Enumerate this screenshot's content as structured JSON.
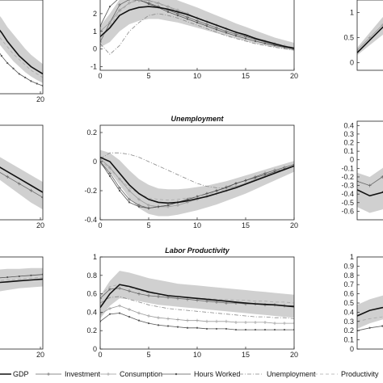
{
  "chart_data": [
    {
      "type": "line",
      "title": "",
      "x": [
        0,
        2,
        4,
        6,
        8,
        10,
        12,
        14,
        16,
        18,
        20
      ],
      "ylim": [
        -0.2,
        2.4
      ],
      "xticks": [
        "20"
      ],
      "yticks": [],
      "series": [
        {
          "name": "GDP",
          "values": [
            2.2,
            2.0,
            1.7,
            1.5,
            1.25,
            1.05,
            0.85,
            0.7,
            0.55,
            0.45,
            0.35
          ]
        },
        {
          "name": "Productivity",
          "values": [
            2.0,
            1.8,
            1.5,
            1.3,
            1.1,
            0.9,
            0.75,
            0.6,
            0.45,
            0.35,
            0.25
          ]
        },
        {
          "name": "Hours Worked",
          "values": [
            1.7,
            1.4,
            1.1,
            0.85,
            0.65,
            0.5,
            0.35,
            0.25,
            0.15,
            0.08,
            0.02
          ]
        }
      ],
      "band": {
        "lower": [
          1.8,
          1.55,
          1.3,
          1.1,
          0.9,
          0.7,
          0.55,
          0.4,
          0.28,
          0.18,
          0.1
        ],
        "upper": [
          2.6,
          2.45,
          2.1,
          1.9,
          1.65,
          1.45,
          1.25,
          1.05,
          0.88,
          0.75,
          0.62
        ]
      }
    },
    {
      "type": "line",
      "title": "",
      "x": [
        0,
        1,
        2,
        3,
        4,
        5,
        6,
        7,
        8,
        9,
        10,
        11,
        12,
        13,
        14,
        15,
        16,
        17,
        18,
        19,
        20
      ],
      "ylim": [
        -1.2,
        3.0
      ],
      "xticks": [
        "0",
        "5",
        "10",
        "15",
        "20"
      ],
      "yticks": [
        "-1",
        "0",
        "1",
        "2"
      ],
      "series": [
        {
          "name": "GDP",
          "values": [
            0.7,
            1.2,
            1.9,
            2.2,
            2.35,
            2.4,
            2.35,
            2.25,
            2.1,
            1.95,
            1.75,
            1.55,
            1.35,
            1.15,
            0.95,
            0.8,
            0.6,
            0.45,
            0.3,
            0.15,
            0.05
          ]
        },
        {
          "name": "Investment",
          "values": [
            0.4,
            1.5,
            2.5,
            2.8,
            2.75,
            2.6,
            2.4,
            2.2,
            2.0,
            1.8,
            1.6,
            1.4,
            1.2,
            1.0,
            0.85,
            0.7,
            0.55,
            0.4,
            0.25,
            0.12,
            0.0
          ]
        },
        {
          "name": "Consumption",
          "values": [
            1.0,
            1.5,
            2.2,
            2.6,
            2.8,
            2.75,
            2.6,
            2.4,
            2.2,
            2.0,
            1.75,
            1.55,
            1.35,
            1.15,
            0.95,
            0.75,
            0.6,
            0.45,
            0.3,
            0.18,
            0.05
          ]
        },
        {
          "name": "Unemployment",
          "values": [
            0.3,
            -0.3,
            0.2,
            1.0,
            1.5,
            1.9,
            2.0,
            1.9,
            1.75,
            1.55,
            1.35,
            1.15,
            0.95,
            0.75,
            0.6,
            0.45,
            0.3,
            0.2,
            0.1,
            0.02,
            -0.05
          ]
        },
        {
          "name": "Hours Worked",
          "values": [
            1.3,
            2.4,
            2.9,
            2.9,
            2.8,
            2.55,
            2.35,
            2.1,
            1.9,
            1.7,
            1.5,
            1.3,
            1.1,
            0.92,
            0.75,
            0.6,
            0.45,
            0.32,
            0.2,
            0.1,
            0.0
          ]
        },
        {
          "name": "Productivity",
          "values": [
            0.5,
            1.3,
            2.1,
            2.6,
            2.75,
            2.7,
            2.55,
            2.35,
            2.15,
            1.95,
            1.75,
            1.55,
            1.35,
            1.15,
            0.97,
            0.8,
            0.63,
            0.47,
            0.33,
            0.2,
            0.08
          ]
        }
      ],
      "band": {
        "lower": [
          0.1,
          0.4,
          1.0,
          1.4,
          1.6,
          1.7,
          1.7,
          1.6,
          1.5,
          1.35,
          1.2,
          1.05,
          0.9,
          0.75,
          0.6,
          0.45,
          0.32,
          0.2,
          0.1,
          0.0,
          -0.1
        ],
        "upper": [
          1.3,
          2.0,
          2.8,
          3.0,
          3.0,
          3.0,
          3.0,
          2.95,
          2.75,
          2.55,
          2.35,
          2.12,
          1.9,
          1.68,
          1.45,
          1.25,
          1.05,
          0.85,
          0.65,
          0.5,
          0.35
        ]
      }
    },
    {
      "type": "line",
      "title": "",
      "x": [
        0,
        1,
        2,
        3,
        4,
        5
      ],
      "ylim": [
        -0.15,
        1.25
      ],
      "xticks": [],
      "yticks": [
        "0",
        "0.5",
        "1"
      ],
      "series": [
        {
          "name": "GDP",
          "values": [
            0.2,
            0.45,
            0.7,
            0.88,
            1.0,
            1.1
          ]
        },
        {
          "name": "Consumption",
          "values": [
            0.25,
            0.5,
            0.75,
            0.95,
            1.1,
            1.2
          ]
        }
      ],
      "band": {
        "lower": [
          0.15,
          0.35,
          0.55,
          0.7,
          0.82,
          0.9
        ],
        "upper": [
          0.3,
          0.6,
          0.9,
          1.1,
          1.2,
          1.25
        ]
      }
    },
    {
      "type": "line",
      "title": "",
      "x": [
        0,
        4,
        8,
        12,
        16,
        20
      ],
      "ylim": [
        -0.4,
        0.15
      ],
      "xticks": [
        "20"
      ],
      "yticks": [],
      "series": [
        {
          "name": "GDP",
          "values": [
            -0.04,
            -0.08,
            -0.12,
            -0.16,
            -0.2,
            -0.24
          ]
        },
        {
          "name": "Investment",
          "values": [
            -0.07,
            -0.11,
            -0.15,
            -0.19,
            -0.23,
            -0.27
          ]
        }
      ],
      "band": {
        "lower": [
          -0.1,
          -0.15,
          -0.2,
          -0.25,
          -0.3,
          -0.34
        ],
        "upper": [
          0.02,
          -0.02,
          -0.06,
          -0.1,
          -0.14,
          -0.18
        ]
      }
    },
    {
      "type": "line",
      "title": "Unemployment",
      "x": [
        0,
        1,
        2,
        3,
        4,
        5,
        6,
        7,
        8,
        9,
        10,
        11,
        12,
        13,
        14,
        15,
        16,
        17,
        18,
        19,
        20
      ],
      "ylim": [
        -0.4,
        0.25
      ],
      "xticks": [
        "0",
        "5",
        "10",
        "15",
        "20"
      ],
      "yticks": [
        "-0.4",
        "-0.2",
        "0",
        "0.2"
      ],
      "series": [
        {
          "name": "GDP",
          "values": [
            0.03,
            0.0,
            -0.08,
            -0.16,
            -0.22,
            -0.26,
            -0.28,
            -0.285,
            -0.28,
            -0.27,
            -0.255,
            -0.24,
            -0.22,
            -0.2,
            -0.18,
            -0.155,
            -0.13,
            -0.105,
            -0.08,
            -0.055,
            -0.03
          ]
        },
        {
          "name": "Investment",
          "values": [
            0.0,
            -0.08,
            -0.18,
            -0.26,
            -0.3,
            -0.32,
            -0.31,
            -0.3,
            -0.28,
            -0.26,
            -0.24,
            -0.22,
            -0.2,
            -0.175,
            -0.15,
            -0.13,
            -0.105,
            -0.08,
            -0.06,
            -0.04,
            -0.02
          ]
        },
        {
          "name": "Consumption",
          "values": [
            0.02,
            -0.04,
            -0.12,
            -0.2,
            -0.26,
            -0.3,
            -0.31,
            -0.31,
            -0.3,
            -0.28,
            -0.26,
            -0.24,
            -0.22,
            -0.2,
            -0.17,
            -0.15,
            -0.12,
            -0.1,
            -0.07,
            -0.05,
            -0.03
          ]
        },
        {
          "name": "Hours Worked",
          "values": [
            0.0,
            -0.1,
            -0.2,
            -0.28,
            -0.31,
            -0.32,
            -0.31,
            -0.3,
            -0.28,
            -0.26,
            -0.24,
            -0.22,
            -0.2,
            -0.18,
            -0.15,
            -0.13,
            -0.11,
            -0.09,
            -0.07,
            -0.05,
            -0.03
          ]
        },
        {
          "name": "Unemployment",
          "values": [
            0.02,
            0.06,
            0.06,
            0.05,
            0.03,
            0.0,
            -0.03,
            -0.06,
            -0.09,
            -0.12,
            -0.15,
            -0.17,
            -0.18,
            -0.18,
            -0.17,
            -0.155,
            -0.13,
            -0.105,
            -0.08,
            -0.05,
            -0.03
          ]
        },
        {
          "name": "Productivity",
          "values": [
            0.01,
            -0.05,
            -0.12,
            -0.18,
            -0.22,
            -0.25,
            -0.26,
            -0.265,
            -0.26,
            -0.25,
            -0.24,
            -0.225,
            -0.21,
            -0.19,
            -0.17,
            -0.15,
            -0.125,
            -0.1,
            -0.075,
            -0.05,
            -0.03
          ]
        }
      ],
      "band": {
        "lower": [
          -0.02,
          -0.07,
          -0.16,
          -0.25,
          -0.32,
          -0.36,
          -0.375,
          -0.375,
          -0.365,
          -0.35,
          -0.335,
          -0.315,
          -0.295,
          -0.27,
          -0.245,
          -0.22,
          -0.19,
          -0.16,
          -0.13,
          -0.1,
          -0.07
        ],
        "upper": [
          0.08,
          0.06,
          0.01,
          -0.06,
          -0.12,
          -0.16,
          -0.185,
          -0.19,
          -0.19,
          -0.185,
          -0.175,
          -0.165,
          -0.15,
          -0.135,
          -0.115,
          -0.095,
          -0.075,
          -0.055,
          -0.035,
          -0.015,
          0.005
        ]
      }
    },
    {
      "type": "line",
      "title": "",
      "x": [
        0,
        1,
        2,
        3,
        4,
        5
      ],
      "ylim": [
        -0.7,
        0.45
      ],
      "xticks": [],
      "yticks": [
        "-0.6",
        "-0.5",
        "-0.4",
        "-0.3",
        "-0.2",
        "-0.1",
        "0",
        "0.1",
        "0.2",
        "0.3",
        "0.4"
      ],
      "series": [
        {
          "name": "GDP",
          "values": [
            -0.35,
            -0.42,
            -0.38,
            -0.25,
            -0.1,
            0.0
          ]
        },
        {
          "name": "Investment",
          "values": [
            -0.25,
            -0.3,
            -0.2,
            -0.05,
            0.08,
            0.15
          ]
        }
      ],
      "band": {
        "lower": [
          -0.55,
          -0.62,
          -0.58,
          -0.45,
          -0.3,
          -0.2
        ],
        "upper": [
          -0.15,
          -0.2,
          -0.1,
          0.05,
          0.15,
          0.2
        ]
      }
    },
    {
      "type": "line",
      "title": "",
      "x": [
        0,
        4,
        8,
        12,
        16,
        20
      ],
      "ylim": [
        0.0,
        1.0
      ],
      "xticks": [
        "20"
      ],
      "yticks": [],
      "series": [
        {
          "name": "GDP",
          "values": [
            0.71,
            0.72,
            0.73,
            0.74,
            0.75,
            0.76
          ]
        },
        {
          "name": "Productivity",
          "values": [
            0.73,
            0.74,
            0.75,
            0.76,
            0.77,
            0.78
          ]
        },
        {
          "name": "Hours Worked",
          "values": [
            0.76,
            0.77,
            0.78,
            0.79,
            0.8,
            0.81
          ]
        }
      ],
      "band": {
        "lower": [
          0.6,
          0.62,
          0.64,
          0.66,
          0.67,
          0.68
        ],
        "upper": [
          0.85,
          0.86,
          0.87,
          0.87,
          0.88,
          0.88
        ]
      }
    },
    {
      "type": "line",
      "title": "Labor Productivity",
      "x": [
        0,
        1,
        2,
        3,
        4,
        5,
        6,
        7,
        8,
        9,
        10,
        11,
        12,
        13,
        14,
        15,
        16,
        17,
        18,
        19,
        20
      ],
      "ylim": [
        0.0,
        1.0
      ],
      "xticks": [
        "0",
        "5",
        "10",
        "15",
        "20"
      ],
      "yticks": [
        "0",
        "0.2",
        "0.4",
        "0.6",
        "0.8",
        "1"
      ],
      "series": [
        {
          "name": "GDP",
          "values": [
            0.45,
            0.6,
            0.7,
            0.68,
            0.65,
            0.62,
            0.6,
            0.58,
            0.57,
            0.56,
            0.55,
            0.54,
            0.53,
            0.52,
            0.51,
            0.5,
            0.49,
            0.485,
            0.48,
            0.47,
            0.46
          ]
        },
        {
          "name": "Investment",
          "values": [
            0.55,
            0.65,
            0.66,
            0.63,
            0.6,
            0.58,
            0.57,
            0.56,
            0.55,
            0.54,
            0.53,
            0.52,
            0.51,
            0.5,
            0.5,
            0.49,
            0.49,
            0.48,
            0.48,
            0.47,
            0.47
          ]
        },
        {
          "name": "Consumption",
          "values": [
            0.38,
            0.44,
            0.47,
            0.43,
            0.39,
            0.36,
            0.34,
            0.33,
            0.32,
            0.31,
            0.31,
            0.3,
            0.3,
            0.3,
            0.29,
            0.29,
            0.29,
            0.29,
            0.28,
            0.28,
            0.28
          ]
        },
        {
          "name": "Hours Worked",
          "values": [
            0.3,
            0.38,
            0.39,
            0.35,
            0.31,
            0.28,
            0.26,
            0.25,
            0.24,
            0.23,
            0.23,
            0.22,
            0.22,
            0.22,
            0.21,
            0.21,
            0.21,
            0.21,
            0.21,
            0.21,
            0.21
          ]
        },
        {
          "name": "Unemployment",
          "values": [
            0.5,
            0.56,
            0.57,
            0.54,
            0.51,
            0.48,
            0.46,
            0.44,
            0.43,
            0.42,
            0.41,
            0.4,
            0.39,
            0.38,
            0.37,
            0.36,
            0.35,
            0.35,
            0.34,
            0.34,
            0.33
          ]
        },
        {
          "name": "Productivity",
          "values": [
            0.58,
            0.68,
            0.7,
            0.67,
            0.64,
            0.61,
            0.59,
            0.58,
            0.57,
            0.56,
            0.55,
            0.55,
            0.54,
            0.54,
            0.53,
            0.53,
            0.52,
            0.52,
            0.51,
            0.51,
            0.5
          ]
        }
      ],
      "band": {
        "lower": [
          0.33,
          0.47,
          0.55,
          0.54,
          0.52,
          0.5,
          0.48,
          0.47,
          0.46,
          0.45,
          0.44,
          0.43,
          0.42,
          0.41,
          0.4,
          0.39,
          0.38,
          0.37,
          0.36,
          0.35,
          0.34
        ],
        "upper": [
          0.58,
          0.74,
          0.85,
          0.83,
          0.8,
          0.77,
          0.75,
          0.73,
          0.71,
          0.7,
          0.69,
          0.68,
          0.67,
          0.66,
          0.65,
          0.64,
          0.63,
          0.62,
          0.61,
          0.6,
          0.59
        ]
      }
    },
    {
      "type": "line",
      "title": "",
      "x": [
        0,
        1,
        2,
        3,
        4,
        5
      ],
      "ylim": [
        0.0,
        1.0
      ],
      "xticks": [],
      "yticks": [
        "0",
        "0.1",
        "0.2",
        "0.3",
        "0.4",
        "0.5",
        "0.6",
        "0.7",
        "0.8",
        "0.9",
        "1"
      ],
      "series": [
        {
          "name": "GDP",
          "values": [
            0.36,
            0.42,
            0.45,
            0.47,
            0.49,
            0.5
          ]
        },
        {
          "name": "Productivity",
          "values": [
            0.3,
            0.33,
            0.35,
            0.36,
            0.37,
            0.38
          ]
        },
        {
          "name": "Hours Worked",
          "values": [
            0.2,
            0.23,
            0.25,
            0.26,
            0.27,
            0.28
          ]
        }
      ],
      "band": {
        "lower": [
          0.22,
          0.28,
          0.32,
          0.34,
          0.36,
          0.37
        ],
        "upper": [
          0.48,
          0.54,
          0.58,
          0.6,
          0.62,
          0.63
        ]
      }
    }
  ],
  "legend": [
    {
      "name": "GDP",
      "style": "solid-black"
    },
    {
      "name": "Investment",
      "style": "plus-marker"
    },
    {
      "name": "Consumption",
      "style": "plus-marker-gray"
    },
    {
      "name": "Hours Worked",
      "style": "dot-marker"
    },
    {
      "name": "Unemployment",
      "style": "dash-dot"
    },
    {
      "name": "Productivity",
      "style": "dashed-gray"
    }
  ],
  "colors": {
    "band": "#d0d0d0",
    "gdp": "#111111",
    "other": "#777777"
  }
}
